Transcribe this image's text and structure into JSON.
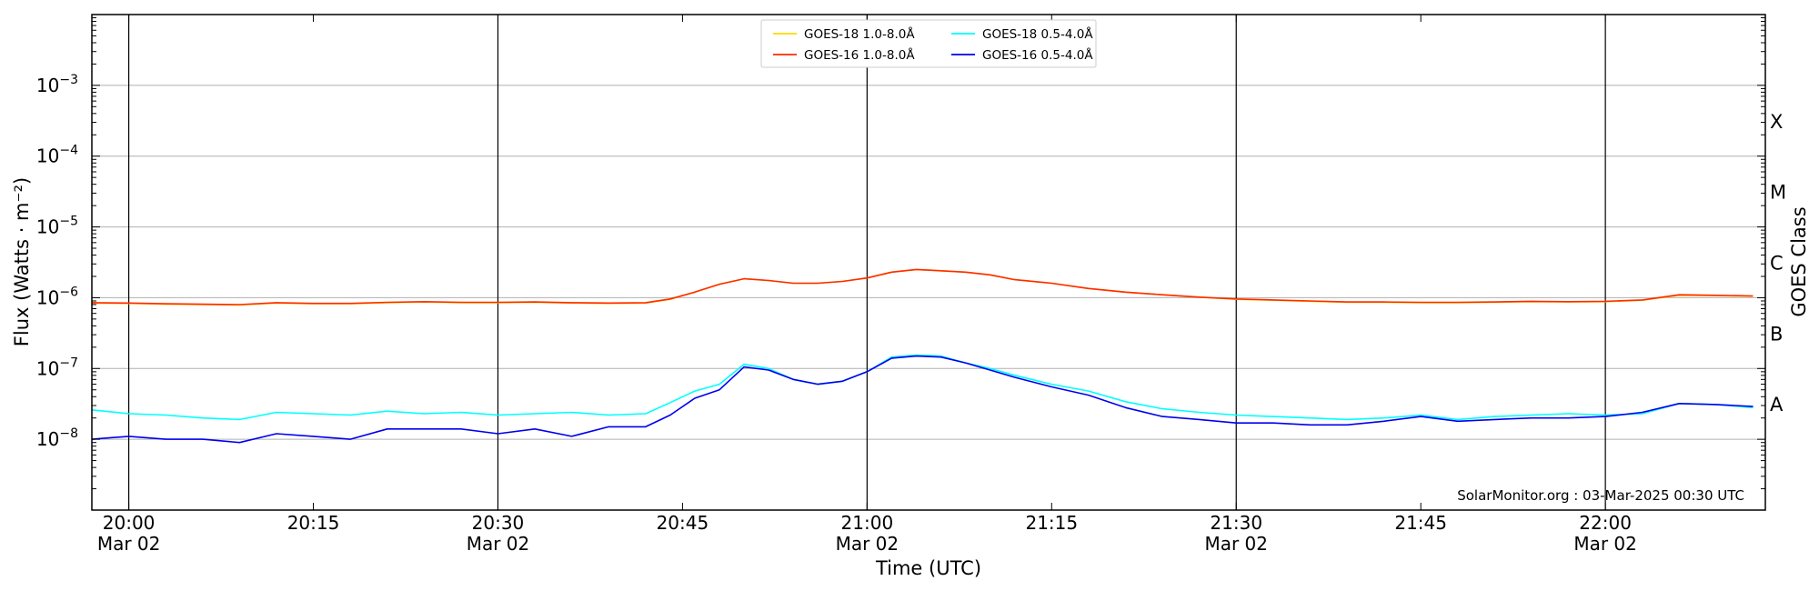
{
  "chart_data": {
    "type": "line",
    "xlabel": "Time (UTC)",
    "ylabel": "Flux (Watts · m⁻²)",
    "y2label": "GOES Class",
    "yscale": "log",
    "xlim": [
      "19:57",
      "22:13"
    ],
    "ylim": [
      1e-09,
      0.01
    ],
    "grid": "horizontal at decades",
    "legend_position": "top-center",
    "credit": "SolarMonitor.org : 03-Mar-2025 00:30 UTC",
    "x_ticks": [
      {
        "time": "20:00",
        "label": "20:00",
        "sub": "Mar 02"
      },
      {
        "time": "20:15",
        "label": "20:15",
        "sub": ""
      },
      {
        "time": "20:30",
        "label": "20:30",
        "sub": "Mar 02"
      },
      {
        "time": "20:45",
        "label": "20:45",
        "sub": ""
      },
      {
        "time": "21:00",
        "label": "21:00",
        "sub": "Mar 02"
      },
      {
        "time": "21:15",
        "label": "21:15",
        "sub": ""
      },
      {
        "time": "21:30",
        "label": "21:30",
        "sub": "Mar 02"
      },
      {
        "time": "21:45",
        "label": "21:45",
        "sub": ""
      },
      {
        "time": "22:00",
        "label": "22:00",
        "sub": "Mar 02"
      }
    ],
    "y_ticks": [
      {
        "exp": -3,
        "base": "10",
        "sup": "−3"
      },
      {
        "exp": -4,
        "base": "10",
        "sup": "−4"
      },
      {
        "exp": -5,
        "base": "10",
        "sup": "−5"
      },
      {
        "exp": -6,
        "base": "10",
        "sup": "−6"
      },
      {
        "exp": -7,
        "base": "10",
        "sup": "−7"
      },
      {
        "exp": -8,
        "base": "10",
        "sup": "−8"
      }
    ],
    "goes_classes": [
      {
        "label": "X",
        "exp": -3.5
      },
      {
        "label": "M",
        "exp": -4.5
      },
      {
        "label": "C",
        "exp": -5.5
      },
      {
        "label": "B",
        "exp": -6.5
      },
      {
        "label": "A",
        "exp": -7.5
      }
    ],
    "x": [
      "19:57",
      "20:00",
      "20:03",
      "20:06",
      "20:09",
      "20:12",
      "20:15",
      "20:18",
      "20:21",
      "20:24",
      "20:27",
      "20:30",
      "20:33",
      "20:36",
      "20:39",
      "20:42",
      "20:44",
      "20:46",
      "20:48",
      "20:50",
      "20:52",
      "20:54",
      "20:56",
      "20:58",
      "21:00",
      "21:02",
      "21:04",
      "21:06",
      "21:08",
      "21:10",
      "21:12",
      "21:15",
      "21:18",
      "21:21",
      "21:24",
      "21:27",
      "21:30",
      "21:33",
      "21:36",
      "21:39",
      "21:42",
      "21:45",
      "21:48",
      "21:51",
      "21:54",
      "21:57",
      "22:00",
      "22:03",
      "22:06",
      "22:09",
      "22:12"
    ],
    "series": [
      {
        "name": "GOES-18 1.0-8.0Å",
        "color": "#ffd700",
        "values": [
          8.4e-07,
          8.3e-07,
          8.1e-07,
          8e-07,
          7.9e-07,
          8.4e-07,
          8.2e-07,
          8.2e-07,
          8.5e-07,
          8.7e-07,
          8.5e-07,
          8.5e-07,
          8.6e-07,
          8.4e-07,
          8.3e-07,
          8.4e-07,
          9.5e-07,
          1.2e-06,
          1.55e-06,
          1.85e-06,
          1.75e-06,
          1.6e-06,
          1.6e-06,
          1.7e-06,
          1.9e-06,
          2.3e-06,
          2.5e-06,
          2.4e-06,
          2.3e-06,
          2.1e-06,
          1.8e-06,
          1.6e-06,
          1.35e-06,
          1.2e-06,
          1.1e-06,
          1.02e-06,
          9.5e-07,
          9.2e-07,
          8.9e-07,
          8.6e-07,
          8.6e-07,
          8.5e-07,
          8.5e-07,
          8.6e-07,
          8.8e-07,
          8.7e-07,
          8.8e-07,
          9.2e-07,
          1.08e-06,
          1.07e-06,
          1.05e-06
        ]
      },
      {
        "name": "GOES-16 1.0-8.0Å",
        "color": "#ff2a00",
        "values": [
          8.5e-07,
          8.4e-07,
          8.2e-07,
          8.1e-07,
          8e-07,
          8.5e-07,
          8.3e-07,
          8.3e-07,
          8.6e-07,
          8.8e-07,
          8.6e-07,
          8.6e-07,
          8.7e-07,
          8.5e-07,
          8.4e-07,
          8.5e-07,
          9.6e-07,
          1.2e-06,
          1.55e-06,
          1.85e-06,
          1.75e-06,
          1.6e-06,
          1.6e-06,
          1.7e-06,
          1.9e-06,
          2.3e-06,
          2.5e-06,
          2.4e-06,
          2.3e-06,
          2.1e-06,
          1.8e-06,
          1.6e-06,
          1.35e-06,
          1.2e-06,
          1.1e-06,
          1.02e-06,
          9.6e-07,
          9.3e-07,
          9e-07,
          8.7e-07,
          8.7e-07,
          8.6e-07,
          8.6e-07,
          8.7e-07,
          8.9e-07,
          8.8e-07,
          8.9e-07,
          9.3e-07,
          1.1e-06,
          1.08e-06,
          1.06e-06
        ]
      },
      {
        "name": "GOES-18 0.5-4.0Å",
        "color": "#00ffff",
        "values": [
          2.6e-08,
          2.3e-08,
          2.2e-08,
          2e-08,
          1.9e-08,
          2.4e-08,
          2.3e-08,
          2.2e-08,
          2.5e-08,
          2.3e-08,
          2.4e-08,
          2.2e-08,
          2.3e-08,
          2.4e-08,
          2.2e-08,
          2.3e-08,
          3.3e-08,
          4.8e-08,
          6e-08,
          1.15e-07,
          1e-07,
          7e-08,
          6e-08,
          6.6e-08,
          9e-08,
          1.45e-07,
          1.55e-07,
          1.5e-07,
          1.2e-07,
          1e-07,
          8e-08,
          6e-08,
          4.8e-08,
          3.4e-08,
          2.7e-08,
          2.4e-08,
          2.2e-08,
          2.1e-08,
          2e-08,
          1.9e-08,
          2e-08,
          2.2e-08,
          1.9e-08,
          2.1e-08,
          2.2e-08,
          2.3e-08,
          2.2e-08,
          2.3e-08,
          3.2e-08,
          3.1e-08,
          2.8e-08
        ]
      },
      {
        "name": "GOES-16 0.5-4.0Å",
        "color": "#0000ee",
        "values": [
          1e-08,
          1.1e-08,
          1e-08,
          1e-08,
          9e-09,
          1.2e-08,
          1.1e-08,
          1e-08,
          1.4e-08,
          1.4e-08,
          1.4e-08,
          1.2e-08,
          1.4e-08,
          1.1e-08,
          1.5e-08,
          1.5e-08,
          2.2e-08,
          3.8e-08,
          5e-08,
          1.05e-07,
          9.5e-08,
          7e-08,
          6e-08,
          6.6e-08,
          9e-08,
          1.4e-07,
          1.5e-07,
          1.45e-07,
          1.2e-07,
          9.5e-08,
          7.5e-08,
          5.5e-08,
          4.2e-08,
          2.8e-08,
          2.1e-08,
          1.9e-08,
          1.7e-08,
          1.7e-08,
          1.6e-08,
          1.6e-08,
          1.8e-08,
          2.1e-08,
          1.8e-08,
          1.9e-08,
          2e-08,
          2e-08,
          2.1e-08,
          2.4e-08,
          3.2e-08,
          3.1e-08,
          2.9e-08
        ]
      }
    ]
  }
}
